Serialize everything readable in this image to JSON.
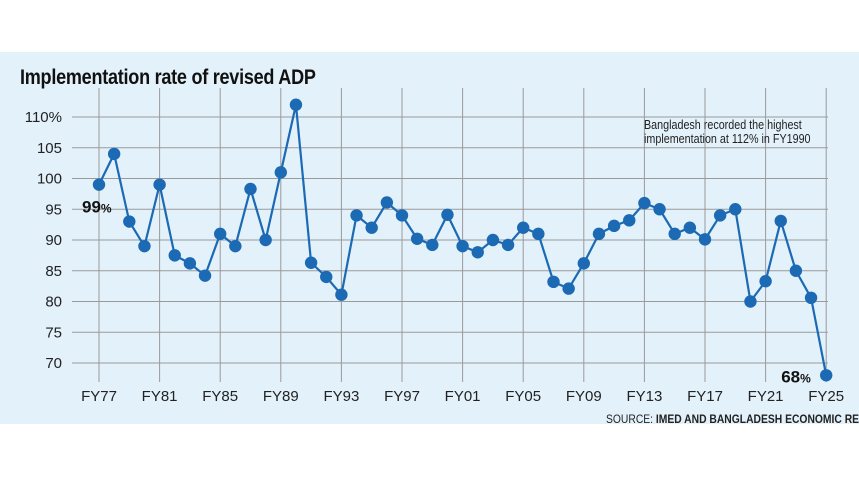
{
  "chart_data": {
    "type": "line",
    "title": "Implementation rate of revised ADP",
    "xlabel": "",
    "ylabel": "",
    "ylim": [
      70,
      110
    ],
    "y_ticks": [
      "70",
      "75",
      "80",
      "85",
      "90",
      "95",
      "100",
      "105",
      "110%"
    ],
    "x_ticks": [
      "FY77",
      "FY81",
      "FY85",
      "FY89",
      "FY93",
      "FY97",
      "FY01",
      "FY05",
      "FY09",
      "FY13",
      "FY17",
      "FY21",
      "FY25"
    ],
    "x": [
      "FY77",
      "FY78",
      "FY79",
      "FY80",
      "FY81",
      "FY82",
      "FY83",
      "FY84",
      "FY85",
      "FY86",
      "FY87",
      "FY88",
      "FY89",
      "FY90",
      "FY91",
      "FY92",
      "FY93",
      "FY94",
      "FY95",
      "FY96",
      "FY97",
      "FY98",
      "FY99",
      "FY00",
      "FY01",
      "FY02",
      "FY03",
      "FY04",
      "FY05",
      "FY06",
      "FY07",
      "FY08",
      "FY09",
      "FY10",
      "FY11",
      "FY12",
      "FY13",
      "FY14",
      "FY15",
      "FY16",
      "FY17",
      "FY18",
      "FY19",
      "FY20",
      "FY21",
      "FY22",
      "FY23",
      "FY24",
      "FY25"
    ],
    "values": [
      99,
      104,
      93,
      89,
      99,
      87.5,
      86.2,
      84.2,
      91,
      89,
      98.3,
      90,
      101,
      112,
      86.3,
      84,
      81.1,
      94,
      92,
      96.1,
      94,
      90.2,
      89.2,
      94.1,
      89,
      88,
      90,
      89.2,
      92,
      91,
      83.2,
      82.1,
      86.2,
      91,
      92.3,
      93.2,
      96,
      95,
      91,
      92,
      90.1,
      94,
      95,
      80,
      83.3,
      93.1,
      85,
      80.6,
      68
    ],
    "grid": true,
    "line_color": "#1b6ab3",
    "background_color": "#e3f1fa",
    "grid_color": "#9a9a9a",
    "annotations": {
      "note": "Bangladesh recorded the highest implementation at 112% in FY1990",
      "first_value": {
        "num": "99",
        "pct": "%"
      },
      "last_value": {
        "num": "68",
        "pct": "%"
      }
    }
  },
  "source": {
    "prefix": "SOURCE: ",
    "text": "IMED AND BANGLADESH ECONOMIC REVIEW"
  }
}
